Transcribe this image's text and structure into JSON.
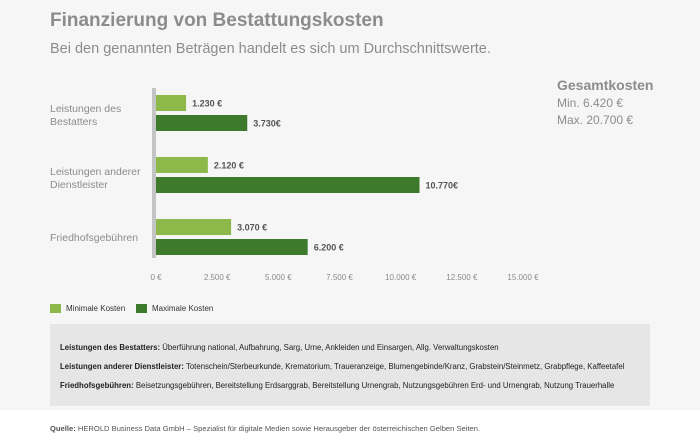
{
  "header": {
    "title": "Finanzierung von Bestattungskosten",
    "subtitle": "Bei den genannten Beträgen handelt es sich um Durchschnittswerte."
  },
  "totals": {
    "heading": "Gesamtkosten",
    "min": "Min. 6.420 €",
    "max": "Max. 20.700 €"
  },
  "chart_data": {
    "type": "bar",
    "orientation": "horizontal",
    "categories": [
      "Leistungen des Bestatters",
      "Leistungen anderer Dienstleister",
      "Friedhofsgebühren"
    ],
    "series": [
      {
        "name": "Minimale Kosten",
        "color": "#8cb94a",
        "values": [
          1230,
          2120,
          3070
        ],
        "labels": [
          "1.230 €",
          "2.120 €",
          "3.070 €"
        ]
      },
      {
        "name": "Maximale Kosten",
        "color": "#3d7a2c",
        "values": [
          3730,
          10770,
          6200
        ],
        "labels": [
          "3.730€",
          "10.770€",
          "6.200 €"
        ]
      }
    ],
    "xlim": [
      0,
      15000
    ],
    "x_ticks": [
      0,
      2500,
      5000,
      7500,
      10000,
      12500,
      15000
    ],
    "x_tick_labels": [
      "0 €",
      "2.500 €",
      "5.000 €",
      "7.500 €",
      "10.000 €",
      "12.500 €",
      "15.000 €"
    ],
    "legend_position": "bottom-left",
    "grid": false
  },
  "notes": [
    {
      "label": "Leistungen des Bestatters:",
      "text": "Überführung national, Aufbahrung, Sarg, Urne, Ankleiden und Einsargen, Allg. Verwaltungskosten"
    },
    {
      "label": "Leistungen anderer Dienstleister:",
      "text": "Totenschein/Sterbeurkunde, Krematorium, Traueranzeige, Blumengebinde/Kranz, Grabstein/Steinmetz, Grabpflege, Kaffeetafel"
    },
    {
      "label": "Friedhofsgebühren:",
      "text": "Beisetzungsgebühren, Bereitstellung Erdsarggrab, Bereitstellung Urnengrab, Nutzungsgebühren Erd- und Urnengrab, Nutzung Trauerhalle"
    }
  ],
  "source": {
    "label": "Quelle:",
    "text": "HEROLD Business Data GmbH – Spezialist für digitale Medien sowie Herausgeber der österreichischen Gelben Seiten."
  }
}
